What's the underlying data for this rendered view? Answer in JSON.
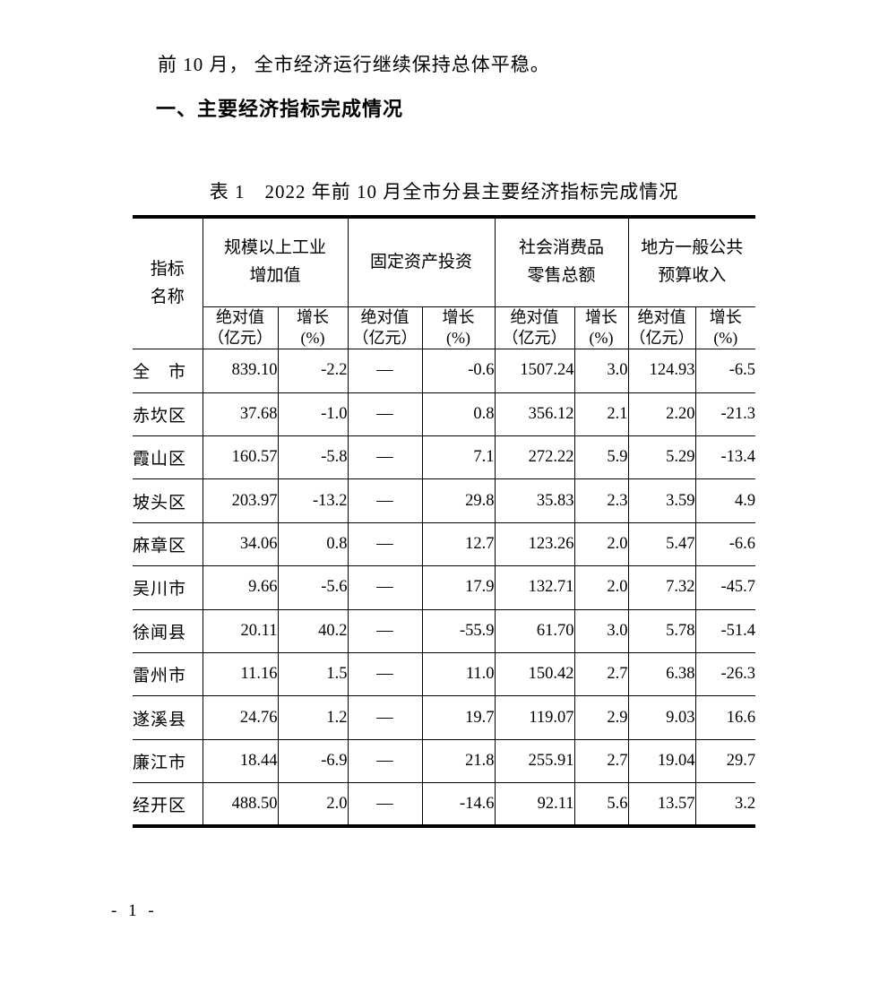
{
  "page": {
    "intro_paragraph": "前 10 月， 全市经济运行继续保持总体平稳。",
    "section_heading": "一、主要经济指标完成情况",
    "page_number": "- 1 -"
  },
  "table": {
    "title": "表 1　2022 年前 10 月全市分县主要经济指标完成情况",
    "corner_header": "指标\n名称",
    "groups": [
      {
        "label": "规模以上工业\n增加值"
      },
      {
        "label": "固定资产投资"
      },
      {
        "label": "社会消费品\n零售总额"
      },
      {
        "label": "地方一般公共\n预算收入"
      }
    ],
    "sub_headers": {
      "abs": "绝对值\n（亿元）",
      "growth": "增长\n(%)"
    },
    "rows": [
      {
        "name": "全　市",
        "values": [
          "839.10",
          "-2.2",
          "—",
          "-0.6",
          "1507.24",
          "3.0",
          "124.93",
          "-6.5"
        ]
      },
      {
        "name": "赤坎区",
        "values": [
          "37.68",
          "-1.0",
          "—",
          "0.8",
          "356.12",
          "2.1",
          "2.20",
          "-21.3"
        ]
      },
      {
        "name": "霞山区",
        "values": [
          "160.57",
          "-5.8",
          "—",
          "7.1",
          "272.22",
          "5.9",
          "5.29",
          "-13.4"
        ]
      },
      {
        "name": "坡头区",
        "values": [
          "203.97",
          "-13.2",
          "—",
          "29.8",
          "35.83",
          "2.3",
          "3.59",
          "4.9"
        ]
      },
      {
        "name": "麻章区",
        "values": [
          "34.06",
          "0.8",
          "—",
          "12.7",
          "123.26",
          "2.0",
          "5.47",
          "-6.6"
        ]
      },
      {
        "name": "吴川市",
        "values": [
          "9.66",
          "-5.6",
          "—",
          "17.9",
          "132.71",
          "2.0",
          "7.32",
          "-45.7"
        ]
      },
      {
        "name": "徐闻县",
        "values": [
          "20.11",
          "40.2",
          "—",
          "-55.9",
          "61.70",
          "3.0",
          "5.78",
          "-51.4"
        ]
      },
      {
        "name": "雷州市",
        "values": [
          "11.16",
          "1.5",
          "—",
          "11.0",
          "150.42",
          "2.7",
          "6.38",
          "-26.3"
        ]
      },
      {
        "name": "遂溪县",
        "values": [
          "24.76",
          "1.2",
          "—",
          "19.7",
          "119.07",
          "2.9",
          "9.03",
          "16.6"
        ]
      },
      {
        "name": "廉江市",
        "values": [
          "18.44",
          "-6.9",
          "—",
          "21.8",
          "255.91",
          "2.7",
          "19.04",
          "29.7"
        ]
      },
      {
        "name": "经开区",
        "values": [
          "488.50",
          "2.0",
          "—",
          "-14.6",
          "92.11",
          "5.6",
          "13.57",
          "3.2"
        ]
      }
    ]
  }
}
